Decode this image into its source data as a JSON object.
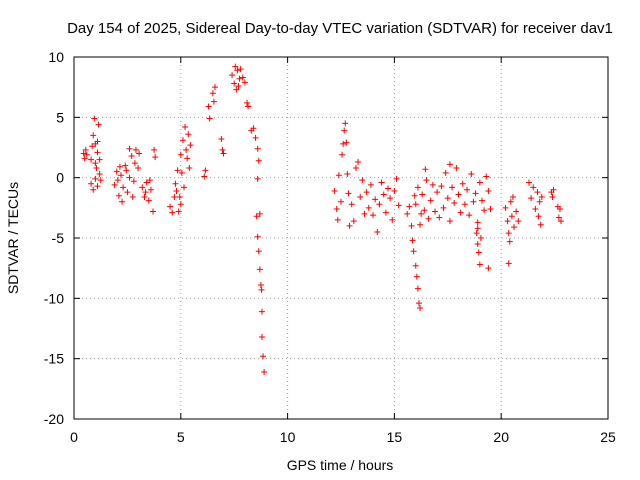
{
  "chart_data": {
    "type": "scatter",
    "title": "Day 154 of 2025, Sidereal Day-to-day VTEC variation (SDTVAR) for receiver dav1",
    "xlabel": "GPS time / hours",
    "ylabel": "SDTVAR / TECUs",
    "xlim": [
      0,
      25
    ],
    "ylim": [
      -20,
      10
    ],
    "xticks": [
      0,
      5,
      10,
      15,
      20,
      25
    ],
    "yticks": [
      -20,
      -15,
      -10,
      -5,
      0,
      5,
      10
    ],
    "xtick_labels": [
      "0",
      "5",
      "10",
      "15",
      "20",
      "25"
    ],
    "ytick_labels": [
      "-20",
      "-15",
      "-10",
      "-5",
      "0",
      "5",
      "10"
    ],
    "grid": true,
    "marker": "+",
    "marker_color": "#ff0000",
    "series": [
      {
        "name": "SDTVAR",
        "points": [
          [
            0.45,
            2.0
          ],
          [
            0.5,
            1.6
          ],
          [
            0.55,
            2.3
          ],
          [
            0.6,
            1.9
          ],
          [
            0.8,
            1.5
          ],
          [
            0.85,
            2.6
          ],
          [
            0.9,
            3.5
          ],
          [
            0.95,
            4.9
          ],
          [
            1.0,
            2.8
          ],
          [
            1.05,
            0.8
          ],
          [
            1.1,
            2.1
          ],
          [
            1.15,
            4.4
          ],
          [
            1.2,
            1.5
          ],
          [
            0.8,
            -0.5
          ],
          [
            0.9,
            -1.0
          ],
          [
            1.0,
            -0.1
          ],
          [
            1.1,
            -0.7
          ],
          [
            1.2,
            0.3
          ],
          [
            1.25,
            -0.2
          ],
          [
            1.0,
            1.2
          ],
          [
            1.1,
            3.0
          ],
          [
            1.9,
            -0.6
          ],
          [
            2.0,
            0.5
          ],
          [
            2.1,
            -1.5
          ],
          [
            2.2,
            0.2
          ],
          [
            2.3,
            -0.8
          ],
          [
            2.4,
            1.0
          ],
          [
            2.5,
            -1.2
          ],
          [
            2.6,
            0.0
          ],
          [
            2.7,
            1.8
          ],
          [
            2.8,
            -0.3
          ],
          [
            2.9,
            2.3
          ],
          [
            3.0,
            0.8
          ],
          [
            2.6,
            2.4
          ],
          [
            2.75,
            -1.6
          ],
          [
            2.25,
            -2.0
          ],
          [
            2.05,
            -0.2
          ],
          [
            2.45,
            0.6
          ],
          [
            2.85,
            1.2
          ],
          [
            3.05,
            2.0
          ],
          [
            2.15,
            0.9
          ],
          [
            3.2,
            -0.8
          ],
          [
            3.3,
            -1.6
          ],
          [
            3.4,
            -0.4
          ],
          [
            3.5,
            -1.9
          ],
          [
            3.6,
            -1.0
          ],
          [
            3.7,
            -2.8
          ],
          [
            3.75,
            2.3
          ],
          [
            3.8,
            1.7
          ],
          [
            3.35,
            -1.2
          ],
          [
            3.55,
            -0.2
          ],
          [
            4.5,
            -2.4
          ],
          [
            4.6,
            -2.9
          ],
          [
            4.7,
            -1.6
          ],
          [
            4.75,
            -0.5
          ],
          [
            4.85,
            0.6
          ],
          [
            4.95,
            -1.6
          ],
          [
            5.0,
            1.9
          ],
          [
            5.05,
            0.4
          ],
          [
            5.1,
            3.1
          ],
          [
            5.15,
            -0.8
          ],
          [
            5.2,
            4.2
          ],
          [
            5.3,
            1.6
          ],
          [
            5.4,
            0.8
          ],
          [
            4.9,
            -2.8
          ],
          [
            5.0,
            -2.2
          ],
          [
            5.25,
            2.3
          ],
          [
            5.35,
            3.6
          ],
          [
            4.8,
            -1.1
          ],
          [
            5.45,
            2.7
          ],
          [
            6.1,
            0.1
          ],
          [
            6.15,
            0.6
          ],
          [
            6.3,
            5.9
          ],
          [
            6.35,
            4.9
          ],
          [
            6.5,
            7.0
          ],
          [
            6.6,
            7.5
          ],
          [
            6.55,
            6.3
          ],
          [
            6.9,
            3.2
          ],
          [
            6.95,
            2.3
          ],
          [
            7.0,
            2.0
          ],
          [
            7.4,
            8.5
          ],
          [
            7.5,
            7.8
          ],
          [
            7.55,
            9.2
          ],
          [
            7.6,
            7.3
          ],
          [
            7.65,
            8.9
          ],
          [
            7.7,
            7.6
          ],
          [
            7.75,
            8.2
          ],
          [
            7.8,
            9.0
          ],
          [
            7.9,
            8.3
          ],
          [
            8.0,
            7.9
          ],
          [
            8.1,
            6.2
          ],
          [
            8.15,
            5.9
          ],
          [
            8.3,
            3.9
          ],
          [
            8.4,
            4.1
          ],
          [
            8.5,
            3.3
          ],
          [
            8.6,
            2.4
          ],
          [
            8.65,
            1.4
          ],
          [
            8.55,
            -3.2
          ],
          [
            8.6,
            -4.9
          ],
          [
            8.65,
            -6.1
          ],
          [
            8.7,
            -7.6
          ],
          [
            8.75,
            -8.9
          ],
          [
            8.78,
            -9.3
          ],
          [
            8.8,
            -11.1
          ],
          [
            8.8,
            -13.2
          ],
          [
            8.85,
            -14.8
          ],
          [
            8.9,
            -16.1
          ],
          [
            8.7,
            -3.0
          ],
          [
            8.6,
            -0.1
          ],
          [
            12.2,
            -1.1
          ],
          [
            12.3,
            -2.6
          ],
          [
            12.35,
            -3.5
          ],
          [
            12.4,
            0.2
          ],
          [
            12.5,
            -2.0
          ],
          [
            12.55,
            1.9
          ],
          [
            12.6,
            2.8
          ],
          [
            12.65,
            3.9
          ],
          [
            12.7,
            4.5
          ],
          [
            12.75,
            2.9
          ],
          [
            12.8,
            0.3
          ],
          [
            12.85,
            -1.3
          ],
          [
            12.9,
            -4.0
          ],
          [
            13.0,
            -2.2
          ],
          [
            13.1,
            -3.6
          ],
          [
            13.2,
            0.8
          ],
          [
            13.3,
            1.3
          ],
          [
            13.4,
            -1.6
          ],
          [
            13.5,
            -0.2
          ],
          [
            13.6,
            -3.0
          ],
          [
            13.7,
            -1.2
          ],
          [
            13.8,
            -2.5
          ],
          [
            13.9,
            -0.6
          ],
          [
            14.0,
            -3.1
          ],
          [
            14.1,
            -1.8
          ],
          [
            14.2,
            -4.5
          ],
          [
            14.3,
            -2.2
          ],
          [
            14.4,
            -0.4
          ],
          [
            14.5,
            -1.4
          ],
          [
            14.6,
            -2.9
          ],
          [
            14.7,
            -0.9
          ],
          [
            14.8,
            -1.7
          ],
          [
            14.9,
            -3.5
          ],
          [
            15.0,
            -1.1
          ],
          [
            15.1,
            -0.1
          ],
          [
            15.2,
            -2.3
          ],
          [
            15.6,
            -3.0
          ],
          [
            15.7,
            -2.4
          ],
          [
            15.8,
            -4.0
          ],
          [
            15.85,
            -5.2
          ],
          [
            15.9,
            -6.1
          ],
          [
            16.0,
            -7.3
          ],
          [
            16.05,
            -8.2
          ],
          [
            16.1,
            -9.2
          ],
          [
            16.15,
            -10.4
          ],
          [
            16.2,
            -10.8
          ],
          [
            16.0,
            -2.2
          ],
          [
            16.1,
            -0.8
          ],
          [
            16.2,
            -3.9
          ],
          [
            16.3,
            -1.4
          ],
          [
            16.4,
            -2.7
          ],
          [
            16.5,
            -0.2
          ],
          [
            16.6,
            -3.4
          ],
          [
            16.7,
            -1.9
          ],
          [
            16.8,
            -0.6
          ],
          [
            16.9,
            -2.8
          ],
          [
            17.0,
            -1.2
          ],
          [
            17.1,
            -3.3
          ],
          [
            17.2,
            -0.7
          ],
          [
            17.3,
            -2.5
          ],
          [
            17.4,
            0.4
          ],
          [
            17.5,
            -1.7
          ],
          [
            17.6,
            -3.6
          ],
          [
            17.7,
            -0.8
          ],
          [
            17.8,
            -2.1
          ],
          [
            17.9,
            0.8
          ],
          [
            18.0,
            -1.4
          ],
          [
            18.1,
            -2.9
          ],
          [
            18.2,
            -0.5
          ],
          [
            18.3,
            -2.2
          ],
          [
            18.4,
            -1.0
          ],
          [
            18.5,
            -3.1
          ],
          [
            18.6,
            0.3
          ],
          [
            18.7,
            -2.0
          ],
          [
            18.8,
            -1.3
          ],
          [
            18.9,
            -3.7
          ],
          [
            19.0,
            -0.4
          ],
          [
            19.1,
            -1.9
          ],
          [
            19.2,
            -2.7
          ],
          [
            19.3,
            0.1
          ],
          [
            19.4,
            -1.1
          ],
          [
            19.5,
            -2.6
          ],
          [
            17.6,
            1.1
          ],
          [
            16.45,
            0.7
          ],
          [
            15.95,
            -1.5
          ],
          [
            16.25,
            -3.0
          ],
          [
            18.85,
            -4.6
          ],
          [
            18.9,
            -5.5
          ],
          [
            18.95,
            -6.2
          ],
          [
            19.0,
            -7.2
          ],
          [
            18.9,
            -4.2
          ],
          [
            19.05,
            -5.0
          ],
          [
            19.4,
            -7.5
          ],
          [
            20.2,
            -2.5
          ],
          [
            20.3,
            -3.6
          ],
          [
            20.35,
            -4.6
          ],
          [
            20.4,
            -5.3
          ],
          [
            20.45,
            -2.0
          ],
          [
            20.5,
            -3.2
          ],
          [
            20.55,
            -1.6
          ],
          [
            20.6,
            -4.1
          ],
          [
            20.7,
            -2.8
          ],
          [
            20.8,
            -3.6
          ],
          [
            20.35,
            -7.1
          ],
          [
            21.3,
            -0.4
          ],
          [
            21.4,
            -1.7
          ],
          [
            21.5,
            -0.8
          ],
          [
            21.6,
            -2.6
          ],
          [
            21.7,
            -1.2
          ],
          [
            21.75,
            -3.2
          ],
          [
            21.8,
            -2.0
          ],
          [
            21.85,
            -3.9
          ],
          [
            21.9,
            -1.6
          ],
          [
            22.35,
            -1.2
          ],
          [
            22.4,
            -1.6
          ],
          [
            22.45,
            -1.0
          ],
          [
            22.65,
            -2.4
          ],
          [
            22.7,
            -3.3
          ],
          [
            22.75,
            -2.6
          ],
          [
            22.8,
            -3.6
          ]
        ]
      }
    ]
  }
}
